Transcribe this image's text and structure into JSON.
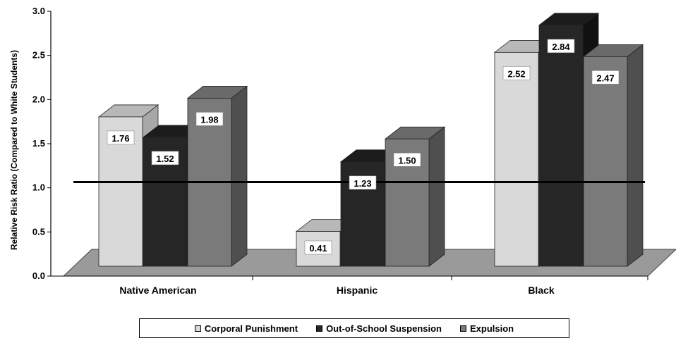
{
  "chart_data": {
    "type": "bar",
    "categories": [
      "Native American",
      "Hispanic",
      "Black"
    ],
    "series": [
      {
        "name": "Corporal Punishment",
        "values": [
          1.76,
          0.41,
          2.52
        ],
        "labels": [
          "1.76",
          "0.41",
          "2.52"
        ],
        "color": "#d9d9d9",
        "top": "#b8b8b8",
        "side": "#a8a8a8"
      },
      {
        "name": "Out-of-School Suspension",
        "values": [
          1.52,
          1.23,
          2.84
        ],
        "labels": [
          "1.52",
          "1.23",
          "2.84"
        ],
        "color": "#262626",
        "top": "#1c1c1c",
        "side": "#111111"
      },
      {
        "name": "Expulsion",
        "values": [
          1.98,
          1.5,
          2.47
        ],
        "labels": [
          "1.98",
          "1.50",
          "2.47"
        ],
        "color": "#7a7a7a",
        "top": "#6a6a6a",
        "side": "#4f4f4f"
      }
    ],
    "ylabel": "Relative Risk Ratio (Compared to White Students)",
    "ylim": [
      0,
      3.0
    ],
    "yticks": [
      "0.0",
      "0.5",
      "1.0",
      "1.5",
      "2.0",
      "2.5",
      "3.0"
    ],
    "reference_line": 1.0,
    "grid": false,
    "legend_position": "bottom"
  }
}
